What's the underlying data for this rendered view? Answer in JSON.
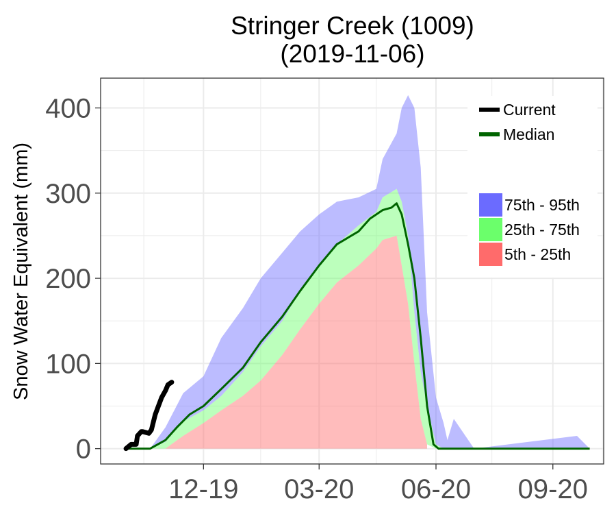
{
  "chart_data": {
    "type": "area",
    "title": "Stringer Creek (1009)",
    "subtitle": "(2019-11-06)",
    "xlabel": "",
    "ylabel": "Snow Water Equivalent (mm)",
    "x_ticks": [
      "12-19",
      "03-20",
      "06-20",
      "09-20"
    ],
    "y_ticks": [
      0,
      100,
      200,
      300,
      400
    ],
    "ylim": [
      -18,
      435
    ],
    "grid": true,
    "legend_position": "top-right",
    "colors": {
      "current": "#000000",
      "median": "#006400",
      "band_75_95": "#6b6bff",
      "band_25_75": "#6bff6b",
      "band_5_25": "#ff6b6b"
    },
    "legend": {
      "lines": [
        "Current",
        "Median"
      ],
      "bands": [
        "75th - 95th",
        "25th - 75th",
        "5th - 25th"
      ]
    },
    "series": [
      {
        "name": "Current",
        "x": [
          "2019-10-01",
          "2019-10-05",
          "2019-10-06",
          "2019-10-09",
          "2019-10-10",
          "2019-10-13",
          "2019-10-14",
          "2019-10-19",
          "2019-10-21",
          "2019-10-24",
          "2019-10-26",
          "2019-10-29",
          "2019-11-01",
          "2019-11-03",
          "2019-11-06"
        ],
        "y": [
          0,
          5,
          5,
          5,
          15,
          20,
          20,
          18,
          22,
          40,
          48,
          60,
          68,
          75,
          78
        ]
      },
      {
        "name": "Median",
        "x": [
          "2019-10-01",
          "2019-10-20",
          "2019-11-01",
          "2019-11-10",
          "2019-11-20",
          "2019-12-01",
          "2019-12-15",
          "2020-01-01",
          "2020-01-15",
          "2020-02-01",
          "2020-02-15",
          "2020-03-01",
          "2020-03-15",
          "2020-04-01",
          "2020-04-10",
          "2020-04-20",
          "2020-04-27",
          "2020-05-01",
          "2020-05-05",
          "2020-05-10",
          "2020-05-15",
          "2020-05-20",
          "2020-05-25",
          "2020-05-30",
          "2020-06-03",
          "2020-06-07",
          "2020-06-15",
          "2020-07-01",
          "2020-08-01",
          "2020-09-01",
          "2020-09-30"
        ],
        "y": [
          0,
          0,
          10,
          25,
          40,
          50,
          70,
          95,
          125,
          155,
          185,
          215,
          240,
          255,
          270,
          280,
          283,
          288,
          275,
          240,
          200,
          130,
          50,
          5,
          0,
          0,
          0,
          0,
          0,
          0,
          0
        ]
      },
      {
        "name": "75th - 95th",
        "x": [
          "2019-10-01",
          "2019-10-20",
          "2019-11-01",
          "2019-11-15",
          "2019-12-01",
          "2019-12-15",
          "2020-01-01",
          "2020-01-15",
          "2020-02-01",
          "2020-02-15",
          "2020-03-01",
          "2020-03-15",
          "2020-04-01",
          "2020-04-15",
          "2020-04-20",
          "2020-05-01",
          "2020-05-05",
          "2020-05-10",
          "2020-05-15",
          "2020-05-20",
          "2020-05-25",
          "2020-06-01",
          "2020-06-07",
          "2020-06-10",
          "2020-06-15",
          "2020-07-01",
          "2020-09-20",
          "2020-09-30"
        ],
        "low": [
          0,
          0,
          8,
          32,
          45,
          62,
          90,
          120,
          150,
          185,
          215,
          240,
          262,
          278,
          295,
          305,
          290,
          250,
          160,
          90,
          50,
          5,
          0,
          0,
          0,
          0,
          0,
          0
        ],
        "high": [
          0,
          0,
          25,
          65,
          85,
          130,
          165,
          200,
          230,
          255,
          275,
          290,
          295,
          305,
          340,
          370,
          400,
          415,
          400,
          330,
          160,
          60,
          30,
          10,
          35,
          0,
          15,
          0
        ]
      },
      {
        "name": "25th - 75th",
        "x": [
          "2019-10-01",
          "2019-10-20",
          "2019-11-01",
          "2019-11-15",
          "2019-12-01",
          "2019-12-15",
          "2020-01-01",
          "2020-01-15",
          "2020-02-01",
          "2020-02-15",
          "2020-03-01",
          "2020-03-15",
          "2020-04-01",
          "2020-04-15",
          "2020-04-20",
          "2020-05-01",
          "2020-05-05",
          "2020-05-10",
          "2020-05-15",
          "2020-05-20",
          "2020-05-25",
          "2020-06-01",
          "2020-06-07"
        ],
        "low": [
          0,
          0,
          0,
          15,
          30,
          45,
          62,
          80,
          110,
          140,
          170,
          195,
          215,
          235,
          245,
          250,
          215,
          170,
          100,
          35,
          5,
          0,
          0
        ],
        "high": [
          0,
          0,
          8,
          32,
          45,
          62,
          90,
          120,
          150,
          185,
          215,
          240,
          262,
          278,
          295,
          305,
          290,
          250,
          160,
          90,
          50,
          5,
          0
        ]
      },
      {
        "name": "5th - 25th",
        "x": [
          "2019-10-01",
          "2019-11-01",
          "2019-11-15",
          "2019-12-01",
          "2019-12-15",
          "2020-01-01",
          "2020-01-15",
          "2020-02-01",
          "2020-02-15",
          "2020-03-01",
          "2020-03-15",
          "2020-04-01",
          "2020-04-15",
          "2020-04-20",
          "2020-05-01",
          "2020-05-05",
          "2020-05-10",
          "2020-05-15",
          "2020-05-20",
          "2020-05-25"
        ],
        "low": [
          0,
          0,
          0,
          0,
          0,
          0,
          0,
          0,
          0,
          0,
          0,
          0,
          0,
          0,
          0,
          0,
          0,
          0,
          0,
          0
        ],
        "high": [
          0,
          0,
          15,
          30,
          45,
          62,
          80,
          110,
          140,
          170,
          195,
          215,
          235,
          245,
          250,
          215,
          170,
          100,
          35,
          5
        ]
      }
    ]
  }
}
